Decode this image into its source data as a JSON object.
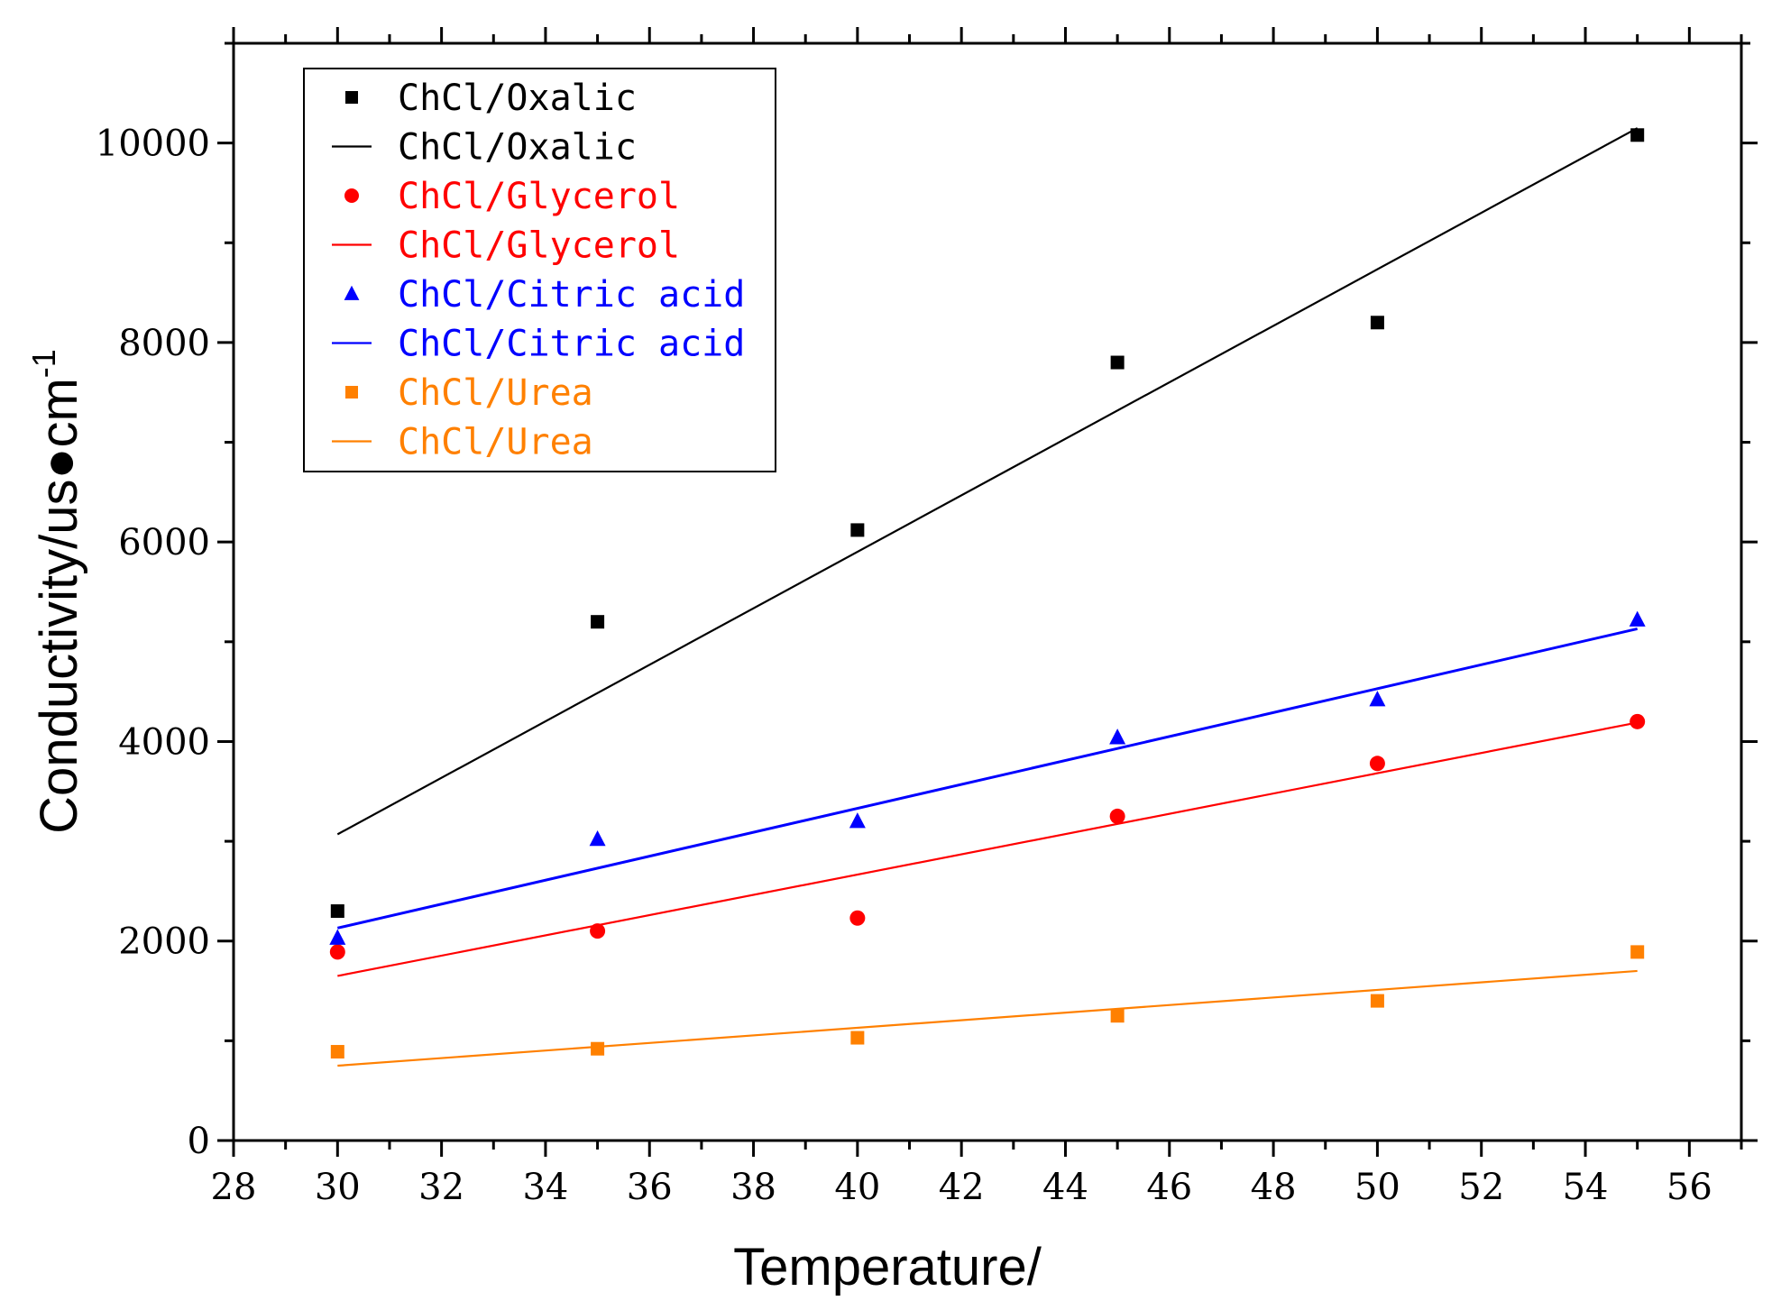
{
  "chart_data": {
    "type": "scatter",
    "title": "",
    "xlabel": "Temperature/",
    "ylabel": "Conductivity/us●cm",
    "ylabel_superscript": "-1",
    "xlim": [
      28,
      57
    ],
    "ylim": [
      0,
      11000
    ],
    "x_ticks": [
      28,
      30,
      32,
      34,
      36,
      38,
      40,
      42,
      44,
      46,
      48,
      50,
      52,
      54,
      56
    ],
    "y_ticks": [
      0,
      2000,
      4000,
      6000,
      8000,
      10000
    ],
    "legend_position": "top-left",
    "x": [
      30,
      35,
      40,
      45,
      50,
      55
    ],
    "series": [
      {
        "name": "ChCl/Oxalic",
        "color": "#000000",
        "marker": "square",
        "values": [
          2300,
          5200,
          6120,
          7800,
          8200,
          10080
        ],
        "fit": [
          3070,
          10150
        ]
      },
      {
        "name": "ChCl/Glycerol",
        "color": "#ff0000",
        "marker": "circle",
        "values": [
          1890,
          2100,
          2230,
          3250,
          3780,
          4200
        ],
        "fit": [
          1650,
          4190
        ]
      },
      {
        "name": "ChCl/Citric acid",
        "color": "#0000ff",
        "marker": "triangle",
        "values": [
          2030,
          3020,
          3200,
          4040,
          4420,
          5220
        ],
        "fit": [
          2130,
          5130
        ]
      },
      {
        "name": "ChCl/Urea",
        "color": "#ff8000",
        "marker": "square",
        "values": [
          890,
          920,
          1030,
          1250,
          1400,
          1890
        ],
        "fit": [
          750,
          1700
        ]
      }
    ]
  }
}
